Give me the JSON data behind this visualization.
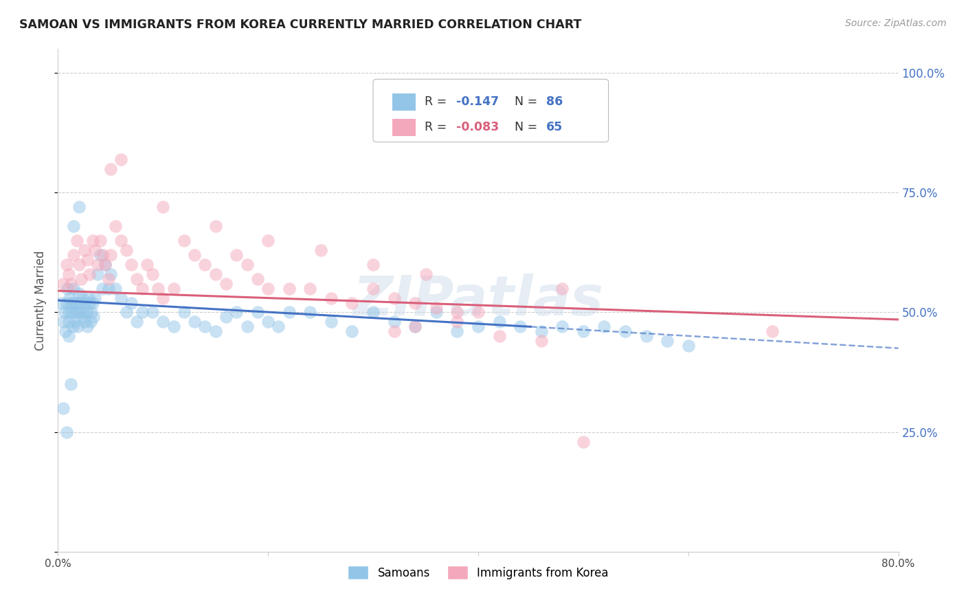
{
  "title": "SAMOAN VS IMMIGRANTS FROM KOREA CURRENTLY MARRIED CORRELATION CHART",
  "source": "Source: ZipAtlas.com",
  "ylabel": "Currently Married",
  "xlim": [
    0.0,
    0.8
  ],
  "ylim": [
    0.0,
    1.05
  ],
  "yticks": [
    0.0,
    0.25,
    0.5,
    0.75,
    1.0
  ],
  "xticks": [
    0.0,
    0.2,
    0.4,
    0.6,
    0.8
  ],
  "xtick_labels": [
    "0.0%",
    "",
    "",
    "",
    "80.0%"
  ],
  "ytick_labels": [
    "",
    "25.0%",
    "50.0%",
    "75.0%",
    "100.0%"
  ],
  "background_color": "#ffffff",
  "watermark": "ZIPatlas",
  "color_blue": "#92C5E8",
  "color_pink": "#F4A8BB",
  "line_blue": "#4472C4",
  "line_pink": "#D95F7A",
  "blue_line_start_x": 0.0,
  "blue_line_start_y": 0.525,
  "blue_line_solid_end_x": 0.45,
  "blue_line_solid_end_y": 0.47,
  "blue_line_dash_end_x": 0.8,
  "blue_line_dash_end_y": 0.425,
  "pink_line_start_x": 0.0,
  "pink_line_start_y": 0.545,
  "pink_line_end_x": 0.8,
  "pink_line_end_y": 0.485,
  "samoans_x": [
    0.003,
    0.005,
    0.006,
    0.007,
    0.008,
    0.009,
    0.01,
    0.01,
    0.01,
    0.011,
    0.012,
    0.013,
    0.014,
    0.015,
    0.015,
    0.016,
    0.017,
    0.018,
    0.019,
    0.02,
    0.02,
    0.021,
    0.022,
    0.023,
    0.024,
    0.025,
    0.026,
    0.027,
    0.028,
    0.029,
    0.03,
    0.031,
    0.032,
    0.033,
    0.034,
    0.035,
    0.038,
    0.04,
    0.042,
    0.045,
    0.048,
    0.05,
    0.055,
    0.06,
    0.065,
    0.07,
    0.075,
    0.08,
    0.09,
    0.1,
    0.11,
    0.12,
    0.13,
    0.14,
    0.15,
    0.16,
    0.17,
    0.18,
    0.19,
    0.2,
    0.21,
    0.22,
    0.24,
    0.26,
    0.28,
    0.3,
    0.32,
    0.34,
    0.36,
    0.38,
    0.4,
    0.42,
    0.44,
    0.46,
    0.48,
    0.5,
    0.52,
    0.54,
    0.56,
    0.58,
    0.6,
    0.005,
    0.008,
    0.012,
    0.015,
    0.02
  ],
  "samoans_y": [
    0.52,
    0.48,
    0.5,
    0.46,
    0.52,
    0.55,
    0.5,
    0.48,
    0.45,
    0.53,
    0.52,
    0.5,
    0.47,
    0.55,
    0.52,
    0.48,
    0.5,
    0.52,
    0.47,
    0.5,
    0.54,
    0.52,
    0.49,
    0.53,
    0.5,
    0.48,
    0.52,
    0.5,
    0.47,
    0.53,
    0.52,
    0.48,
    0.5,
    0.52,
    0.49,
    0.53,
    0.58,
    0.62,
    0.55,
    0.6,
    0.55,
    0.58,
    0.55,
    0.53,
    0.5,
    0.52,
    0.48,
    0.5,
    0.5,
    0.48,
    0.47,
    0.5,
    0.48,
    0.47,
    0.46,
    0.49,
    0.5,
    0.47,
    0.5,
    0.48,
    0.47,
    0.5,
    0.5,
    0.48,
    0.46,
    0.5,
    0.48,
    0.47,
    0.5,
    0.46,
    0.47,
    0.48,
    0.47,
    0.46,
    0.47,
    0.46,
    0.47,
    0.46,
    0.45,
    0.44,
    0.43,
    0.3,
    0.25,
    0.35,
    0.68,
    0.72
  ],
  "korea_x": [
    0.005,
    0.008,
    0.01,
    0.012,
    0.015,
    0.018,
    0.02,
    0.022,
    0.025,
    0.028,
    0.03,
    0.033,
    0.035,
    0.038,
    0.04,
    0.043,
    0.045,
    0.048,
    0.05,
    0.055,
    0.06,
    0.065,
    0.07,
    0.075,
    0.08,
    0.085,
    0.09,
    0.095,
    0.1,
    0.11,
    0.12,
    0.13,
    0.14,
    0.15,
    0.16,
    0.17,
    0.18,
    0.19,
    0.2,
    0.22,
    0.24,
    0.26,
    0.28,
    0.3,
    0.32,
    0.34,
    0.36,
    0.38,
    0.4,
    0.05,
    0.06,
    0.1,
    0.15,
    0.2,
    0.25,
    0.3,
    0.35,
    0.68,
    0.5,
    0.42,
    0.46,
    0.48,
    0.38,
    0.34,
    0.32
  ],
  "korea_y": [
    0.56,
    0.6,
    0.58,
    0.56,
    0.62,
    0.65,
    0.6,
    0.57,
    0.63,
    0.61,
    0.58,
    0.65,
    0.63,
    0.6,
    0.65,
    0.62,
    0.6,
    0.57,
    0.62,
    0.68,
    0.65,
    0.63,
    0.6,
    0.57,
    0.55,
    0.6,
    0.58,
    0.55,
    0.53,
    0.55,
    0.65,
    0.62,
    0.6,
    0.58,
    0.56,
    0.62,
    0.6,
    0.57,
    0.55,
    0.55,
    0.55,
    0.53,
    0.52,
    0.55,
    0.53,
    0.52,
    0.51,
    0.5,
    0.5,
    0.8,
    0.82,
    0.72,
    0.68,
    0.65,
    0.63,
    0.6,
    0.58,
    0.46,
    0.23,
    0.45,
    0.44,
    0.55,
    0.48,
    0.47,
    0.46
  ]
}
